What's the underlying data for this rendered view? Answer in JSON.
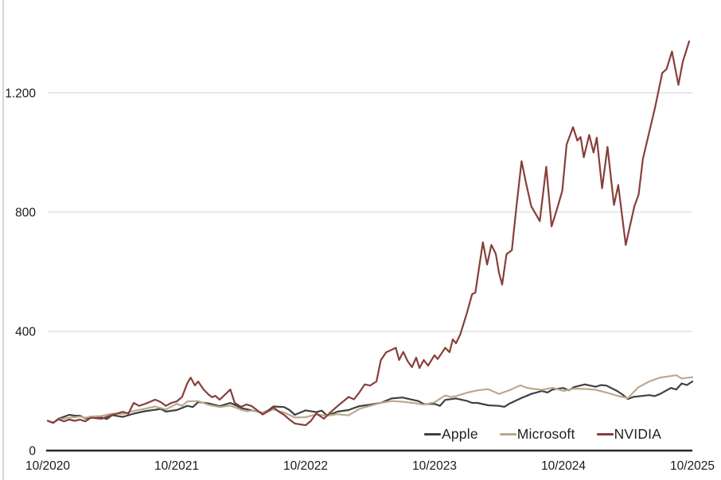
{
  "chart_data": {
    "type": "line",
    "description": "Indexed stock performance (start = 100) of Apple, Microsoft and NVIDIA from October 2020 to October 2025",
    "x_unit": "months since 10/2020",
    "xlim": [
      0,
      60
    ],
    "ylim": [
      0,
      1405
    ],
    "grid": "horizontal",
    "legend_position": "bottom-right-inside",
    "axis_color": "#262626",
    "gridline_color": "#d9d9d9",
    "tick_label_color": "#1a1a1a",
    "xticks": [
      {
        "pos": 0,
        "label": "10/2020"
      },
      {
        "pos": 12,
        "label": "10/2021"
      },
      {
        "pos": 24,
        "label": "10/2022"
      },
      {
        "pos": 36,
        "label": "10/2023"
      },
      {
        "pos": 48,
        "label": "10/2024"
      },
      {
        "pos": 60,
        "label": "10/2025"
      }
    ],
    "yticks": [
      {
        "pos": 0,
        "label": "0"
      },
      {
        "pos": 400,
        "label": "400"
      },
      {
        "pos": 800,
        "label": "800"
      },
      {
        "pos": 1200,
        "label": "1.200"
      }
    ],
    "series": [
      {
        "name": "Apple",
        "color": "#404040",
        "points": [
          [
            0,
            100
          ],
          [
            0.5,
            93
          ],
          [
            1,
            107
          ],
          [
            2,
            120
          ],
          [
            2.5,
            117
          ],
          [
            3,
            117
          ],
          [
            3.5,
            108
          ],
          [
            4,
            110
          ],
          [
            5,
            111
          ],
          [
            5.5,
            106
          ],
          [
            6,
            119
          ],
          [
            7,
            113
          ],
          [
            8,
            124
          ],
          [
            9,
            132
          ],
          [
            10,
            137
          ],
          [
            10.5,
            140
          ],
          [
            11,
            131
          ],
          [
            12,
            136
          ],
          [
            13,
            150
          ],
          [
            13.5,
            146
          ],
          [
            14,
            163
          ],
          [
            15,
            158
          ],
          [
            16,
            149
          ],
          [
            17,
            160
          ],
          [
            17.5,
            152
          ],
          [
            18,
            143
          ],
          [
            19,
            135
          ],
          [
            20,
            127
          ],
          [
            20.5,
            134
          ],
          [
            21,
            148
          ],
          [
            22,
            146
          ],
          [
            22.5,
            136
          ],
          [
            23,
            120
          ],
          [
            24,
            135
          ],
          [
            25,
            129
          ],
          [
            25.5,
            134
          ],
          [
            26,
            117
          ],
          [
            27,
            131
          ],
          [
            28,
            136
          ],
          [
            28.5,
            143
          ],
          [
            29,
            149
          ],
          [
            30,
            154
          ],
          [
            31,
            160
          ],
          [
            32,
            175
          ],
          [
            33,
            178
          ],
          [
            34,
            170
          ],
          [
            34.5,
            166
          ],
          [
            35,
            156
          ],
          [
            36,
            157
          ],
          [
            36.5,
            150
          ],
          [
            37,
            170
          ],
          [
            38,
            175
          ],
          [
            39,
            167
          ],
          [
            39.5,
            160
          ],
          [
            40,
            160
          ],
          [
            41,
            152
          ],
          [
            42,
            150
          ],
          [
            42.5,
            147
          ],
          [
            43,
            158
          ],
          [
            44,
            175
          ],
          [
            45,
            190
          ],
          [
            46,
            200
          ],
          [
            46.5,
            195
          ],
          [
            47,
            205
          ],
          [
            48,
            210
          ],
          [
            48.5,
            202
          ],
          [
            49,
            213
          ],
          [
            50,
            222
          ],
          [
            51,
            214
          ],
          [
            51.5,
            220
          ],
          [
            52,
            218
          ],
          [
            53,
            200
          ],
          [
            53.5,
            188
          ],
          [
            54,
            173
          ],
          [
            54.5,
            180
          ],
          [
            55,
            182
          ],
          [
            56,
            186
          ],
          [
            56.5,
            183
          ],
          [
            57,
            190
          ],
          [
            58,
            210
          ],
          [
            58.5,
            205
          ],
          [
            59,
            225
          ],
          [
            59.5,
            220
          ],
          [
            60,
            232
          ]
        ]
      },
      {
        "name": "Microsoft",
        "color": "#bca98c",
        "points": [
          [
            0,
            100
          ],
          [
            0.5,
            95
          ],
          [
            1,
            105
          ],
          [
            2,
            110
          ],
          [
            3,
            114
          ],
          [
            3.5,
            110
          ],
          [
            4,
            114
          ],
          [
            5,
            116
          ],
          [
            6,
            124
          ],
          [
            7,
            123
          ],
          [
            8,
            133
          ],
          [
            9,
            140
          ],
          [
            10,
            148
          ],
          [
            11,
            138
          ],
          [
            12,
            157
          ],
          [
            12.5,
            150
          ],
          [
            13,
            165
          ],
          [
            14,
            166
          ],
          [
            15,
            153
          ],
          [
            16,
            146
          ],
          [
            17,
            151
          ],
          [
            18,
            137
          ],
          [
            18.5,
            132
          ],
          [
            19,
            134
          ],
          [
            20,
            126
          ],
          [
            21,
            138
          ],
          [
            22,
            128
          ],
          [
            23,
            111
          ],
          [
            24,
            112
          ],
          [
            25,
            121
          ],
          [
            26,
            117
          ],
          [
            27,
            122
          ],
          [
            28,
            118
          ],
          [
            29,
            140
          ],
          [
            30,
            150
          ],
          [
            31,
            160
          ],
          [
            32,
            166
          ],
          [
            33,
            164
          ],
          [
            34,
            160
          ],
          [
            35,
            154
          ],
          [
            36,
            162
          ],
          [
            37,
            185
          ],
          [
            37.5,
            180
          ],
          [
            38,
            183
          ],
          [
            39,
            194
          ],
          [
            40,
            202
          ],
          [
            41,
            206
          ],
          [
            42,
            190
          ],
          [
            43,
            203
          ],
          [
            44,
            219
          ],
          [
            44.5,
            212
          ],
          [
            45,
            208
          ],
          [
            46,
            204
          ],
          [
            47,
            211
          ],
          [
            48,
            200
          ],
          [
            49,
            208
          ],
          [
            50,
            207
          ],
          [
            51,
            204
          ],
          [
            52,
            195
          ],
          [
            53,
            184
          ],
          [
            54,
            176
          ],
          [
            54.5,
            195
          ],
          [
            55,
            213
          ],
          [
            56,
            232
          ],
          [
            57,
            245
          ],
          [
            58,
            250
          ],
          [
            58.5,
            253
          ],
          [
            59,
            242
          ],
          [
            60,
            246
          ]
        ]
      },
      {
        "name": "NVIDIA",
        "color": "#873f3b",
        "points": [
          [
            0,
            100
          ],
          [
            0.5,
            93
          ],
          [
            1,
            105
          ],
          [
            1.5,
            98
          ],
          [
            2,
            104
          ],
          [
            2.5,
            100
          ],
          [
            3,
            104
          ],
          [
            3.5,
            98
          ],
          [
            4,
            110
          ],
          [
            5,
            107
          ],
          [
            5.5,
            113
          ],
          [
            6,
            120
          ],
          [
            7,
            130
          ],
          [
            7.5,
            124
          ],
          [
            8,
            160
          ],
          [
            8.5,
            150
          ],
          [
            9,
            156
          ],
          [
            10,
            171
          ],
          [
            10.5,
            163
          ],
          [
            11,
            150
          ],
          [
            11.5,
            160
          ],
          [
            12,
            165
          ],
          [
            12.5,
            180
          ],
          [
            13,
            227
          ],
          [
            13.3,
            245
          ],
          [
            13.7,
            219
          ],
          [
            14,
            232
          ],
          [
            14.5,
            205
          ],
          [
            15,
            187
          ],
          [
            15.3,
            179
          ],
          [
            15.6,
            184
          ],
          [
            16,
            171
          ],
          [
            16.5,
            188
          ],
          [
            17,
            205
          ],
          [
            17.4,
            160
          ],
          [
            18,
            147
          ],
          [
            18.5,
            155
          ],
          [
            19,
            149
          ],
          [
            19.5,
            135
          ],
          [
            20,
            121
          ],
          [
            20.5,
            132
          ],
          [
            21,
            145
          ],
          [
            21.5,
            131
          ],
          [
            22,
            120
          ],
          [
            22.5,
            104
          ],
          [
            23,
            91
          ],
          [
            24,
            85
          ],
          [
            24.5,
            100
          ],
          [
            25,
            125
          ],
          [
            25.7,
            107
          ],
          [
            26.3,
            128
          ],
          [
            27,
            150
          ],
          [
            27.5,
            165
          ],
          [
            28,
            180
          ],
          [
            28.5,
            172
          ],
          [
            29,
            195
          ],
          [
            29.5,
            222
          ],
          [
            30,
            218
          ],
          [
            30.6,
            232
          ],
          [
            31,
            303
          ],
          [
            31.5,
            330
          ],
          [
            32,
            338
          ],
          [
            32.4,
            345
          ],
          [
            32.7,
            304
          ],
          [
            33.1,
            331
          ],
          [
            33.5,
            300
          ],
          [
            33.9,
            280
          ],
          [
            34.3,
            312
          ],
          [
            34.6,
            277
          ],
          [
            35,
            304
          ],
          [
            35.4,
            285
          ],
          [
            36,
            320
          ],
          [
            36.3,
            307
          ],
          [
            37,
            345
          ],
          [
            37.4,
            330
          ],
          [
            37.7,
            373
          ],
          [
            38,
            360
          ],
          [
            38.4,
            390
          ],
          [
            39,
            460
          ],
          [
            39.5,
            525
          ],
          [
            39.8,
            530
          ],
          [
            40.5,
            699
          ],
          [
            40.9,
            624
          ],
          [
            41.3,
            690
          ],
          [
            41.7,
            660
          ],
          [
            42,
            597
          ],
          [
            42.3,
            557
          ],
          [
            42.7,
            659
          ],
          [
            43.2,
            672
          ],
          [
            43.6,
            810
          ],
          [
            44.1,
            971
          ],
          [
            44.5,
            900
          ],
          [
            45,
            820
          ],
          [
            45.8,
            770
          ],
          [
            46.4,
            952
          ],
          [
            46.9,
            752
          ],
          [
            47.4,
            810
          ],
          [
            47.9,
            872
          ],
          [
            48.3,
            1027
          ],
          [
            48.9,
            1085
          ],
          [
            49.3,
            1040
          ],
          [
            49.6,
            1052
          ],
          [
            49.9,
            984
          ],
          [
            50.4,
            1059
          ],
          [
            50.8,
            1000
          ],
          [
            51.1,
            1050
          ],
          [
            51.6,
            880
          ],
          [
            52.1,
            1019
          ],
          [
            52.7,
            824
          ],
          [
            53.1,
            891
          ],
          [
            53.8,
            690
          ],
          [
            54.1,
            739
          ],
          [
            54.6,
            819
          ],
          [
            55,
            859
          ],
          [
            55.4,
            979
          ],
          [
            55.8,
            1040
          ],
          [
            56.5,
            1147
          ],
          [
            57.2,
            1267
          ],
          [
            57.6,
            1280
          ],
          [
            58.1,
            1339
          ],
          [
            58.7,
            1227
          ],
          [
            59.1,
            1304
          ],
          [
            59.7,
            1373
          ]
        ]
      }
    ]
  }
}
